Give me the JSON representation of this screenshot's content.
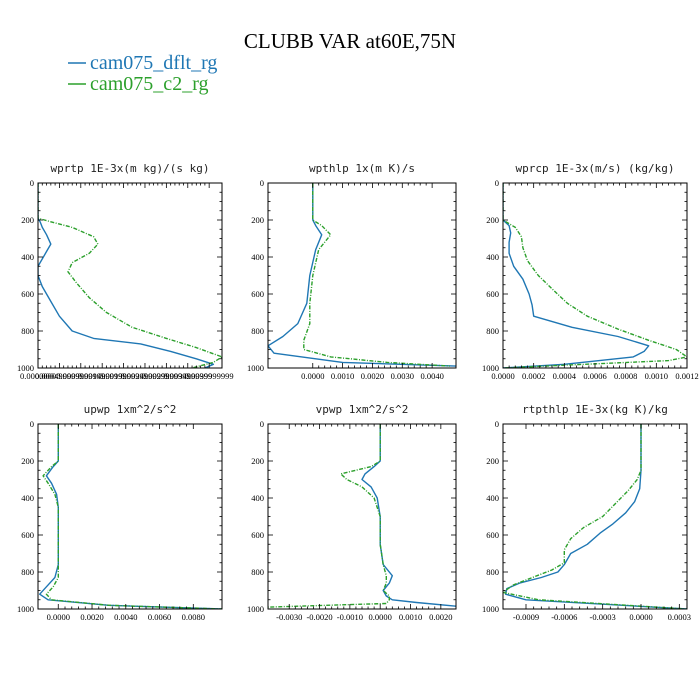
{
  "figure": {
    "title": "CLUBB VAR at60E,75N",
    "legend": [
      {
        "label": "cam075_dflt_rg",
        "color": "#1f77b4",
        "dash": "solid"
      },
      {
        "label": "cam075_c2_rg",
        "color": "#2ca02c",
        "dash": "dashed"
      }
    ]
  },
  "chart_data": [
    {
      "type": "line",
      "title": "wprtp  1E-3x(m kg)/(s kg)",
      "xlim": [
        0,
        0.0043
      ],
      "ylim": [
        1000,
        0
      ],
      "y_ticks": [
        0,
        200,
        400,
        600,
        800,
        1000
      ],
      "x_ticks": [
        {
          "v": 0.0,
          "label": "0.0000000"
        },
        {
          "v": 0.0005,
          "label": "0.0004999999"
        },
        {
          "v": 0.001,
          "label": "0.0009999999"
        },
        {
          "v": 0.0015,
          "label": "0.0014999999"
        },
        {
          "v": 0.002,
          "label": "0.0019999999"
        },
        {
          "v": 0.0025,
          "label": "0.0024999999"
        },
        {
          "v": 0.003,
          "label": "0.0029999999"
        },
        {
          "v": 0.0035,
          "label": "0.0034999999"
        },
        {
          "v": 0.004,
          "label": "0.0039999999"
        }
      ],
      "series": [
        {
          "name": "cam075_dflt_rg",
          "color": "#1f77b4",
          "dash": "solid",
          "x": [
            0,
            0,
            5e-05,
            0.0001,
            0.0002,
            0.0003,
            0.0002,
            0.0001,
            0,
            0,
            0.0001,
            0.0003,
            0.0005,
            0.0008,
            0.0013,
            0.0024,
            0.0031,
            0.0037,
            0.0041,
            0.0039
          ],
          "y": [
            0,
            190,
            210,
            240,
            280,
            330,
            370,
            410,
            450,
            500,
            560,
            640,
            720,
            800,
            840,
            870,
            910,
            950,
            980,
            1000
          ]
        },
        {
          "name": "cam075_c2_rg",
          "color": "#2ca02c",
          "dash": "dashed",
          "x": [
            0,
            0,
            0.0003,
            0.0008,
            0.0013,
            0.0014,
            0.0012,
            0.0008,
            0.0007,
            0.0009,
            0.0012,
            0.0016,
            0.0022,
            0.003,
            0.0037,
            0.0043,
            0.0041,
            0.0036
          ],
          "y": [
            0,
            190,
            210,
            240,
            290,
            330,
            380,
            430,
            480,
            540,
            620,
            700,
            780,
            840,
            890,
            940,
            970,
            1000
          ]
        }
      ]
    },
    {
      "type": "line",
      "title": "wpthlp  1x(m K)/s",
      "xlim": [
        -0.0015,
        0.0048
      ],
      "ylim": [
        1000,
        0
      ],
      "y_ticks": [
        0,
        200,
        400,
        600,
        800,
        1000
      ],
      "x_ticks": [
        {
          "v": 0.0,
          "label": "0.0000"
        },
        {
          "v": 0.001,
          "label": "0.0010"
        },
        {
          "v": 0.002,
          "label": "0.0020"
        },
        {
          "v": 0.003,
          "label": "0.0030"
        },
        {
          "v": 0.004,
          "label": "0.0040"
        }
      ],
      "series": [
        {
          "name": "cam075_dflt_rg",
          "color": "#1f77b4",
          "dash": "solid",
          "x": [
            0,
            0,
            0.0001,
            0.0003,
            0.0001,
            -0.0001,
            -0.0002,
            -0.0005,
            -0.001,
            -0.0015,
            -0.0013,
            0.001,
            0.0048
          ],
          "y": [
            0,
            200,
            230,
            280,
            360,
            500,
            650,
            760,
            830,
            880,
            920,
            970,
            990
          ]
        },
        {
          "name": "cam075_c2_rg",
          "color": "#2ca02c",
          "dash": "dashed",
          "x": [
            0,
            0,
            0.0003,
            0.0006,
            0.0002,
            0,
            -0.0001,
            -0.0001,
            -0.0003,
            -0.0003,
            0.0006,
            0.0025,
            0.0046
          ],
          "y": [
            0,
            200,
            230,
            280,
            360,
            500,
            650,
            760,
            850,
            900,
            940,
            970,
            990
          ]
        }
      ]
    },
    {
      "type": "line",
      "title": "wprcp  1E-3x(m/s) (kg/kg)",
      "xlim": [
        0,
        0.0012
      ],
      "ylim": [
        1000,
        0
      ],
      "y_ticks": [
        0,
        200,
        400,
        600,
        800,
        1000
      ],
      "x_ticks": [
        {
          "v": 0.0,
          "label": "0.0000"
        },
        {
          "v": 0.0002,
          "label": "0.0002"
        },
        {
          "v": 0.0004,
          "label": "0.0004"
        },
        {
          "v": 0.0006,
          "label": "0.0006"
        },
        {
          "v": 0.0008,
          "label": "0.0008"
        },
        {
          "v": 0.001,
          "label": "0.0010"
        },
        {
          "v": 0.0012,
          "label": "0.0012"
        }
      ],
      "series": [
        {
          "name": "cam075_dflt_rg",
          "color": "#1f77b4",
          "dash": "solid",
          "x": [
            0,
            0,
            4e-05,
            5e-05,
            4e-05,
            4e-05,
            7e-05,
            0.00013,
            0.00017,
            0.00019,
            0.0002,
            0.00045,
            0.00075,
            0.00095,
            0.00092,
            0.00085,
            0.0004,
            0
          ],
          "y": [
            0,
            200,
            230,
            270,
            320,
            380,
            450,
            520,
            600,
            660,
            720,
            780,
            830,
            880,
            910,
            940,
            980,
            1000
          ]
        },
        {
          "name": "cam075_c2_rg",
          "color": "#2ca02c",
          "dash": "dashed",
          "x": [
            0,
            0,
            8e-05,
            0.00012,
            0.00013,
            0.00016,
            0.00023,
            0.00033,
            0.00042,
            0.00055,
            0.00075,
            0.00095,
            0.00113,
            0.0012,
            0.00108,
            0.0004,
            0
          ],
          "y": [
            0,
            200,
            240,
            290,
            350,
            420,
            500,
            580,
            650,
            720,
            790,
            850,
            900,
            940,
            960,
            985,
            1000
          ]
        }
      ]
    },
    {
      "type": "line",
      "title": "upwp  1xm^2/s^2",
      "xlim": [
        -0.0012,
        0.0097
      ],
      "ylim": [
        1000,
        0
      ],
      "y_ticks": [
        0,
        200,
        400,
        600,
        800,
        1000
      ],
      "x_ticks": [
        {
          "v": 0.0,
          "label": "0.0000"
        },
        {
          "v": 0.002,
          "label": "0.0020"
        },
        {
          "v": 0.004,
          "label": "0.0040"
        },
        {
          "v": 0.006,
          "label": "0.0060"
        },
        {
          "v": 0.008,
          "label": "0.0080"
        }
      ],
      "series": [
        {
          "name": "cam075_dflt_rg",
          "color": "#1f77b4",
          "dash": "solid",
          "x": [
            0,
            0,
            -0.0003,
            -0.0007,
            -0.0004,
            -0.0001,
            0,
            0,
            0,
            -0.0002,
            -0.0007,
            -0.0011,
            -0.0006,
            0.003,
            0.0097
          ],
          "y": [
            0,
            200,
            230,
            280,
            320,
            380,
            450,
            600,
            760,
            830,
            880,
            920,
            950,
            980,
            1000
          ]
        },
        {
          "name": "cam075_c2_rg",
          "color": "#2ca02c",
          "dash": "dashed",
          "x": [
            0,
            0,
            -0.0004,
            -0.0009,
            -0.0006,
            -0.0002,
            0,
            0,
            0,
            0,
            -0.0003,
            -0.0007,
            -0.0004,
            0.003,
            0.0097
          ],
          "y": [
            0,
            200,
            230,
            280,
            320,
            380,
            450,
            600,
            760,
            830,
            880,
            920,
            950,
            980,
            1000
          ]
        }
      ]
    },
    {
      "type": "line",
      "title": "vpwp  1xm^2/s^2",
      "xlim": [
        -0.0037,
        0.0025
      ],
      "ylim": [
        1000,
        0
      ],
      "y_ticks": [
        0,
        200,
        400,
        600,
        800,
        1000
      ],
      "x_ticks": [
        {
          "v": -0.003,
          "label": "-0.0030"
        },
        {
          "v": -0.002,
          "label": "-0.0020"
        },
        {
          "v": -0.001,
          "label": "-0.0010"
        },
        {
          "v": 0.0,
          "label": "0.0000"
        },
        {
          "v": 0.001,
          "label": "0.0010"
        },
        {
          "v": 0.002,
          "label": "0.0020"
        }
      ],
      "series": [
        {
          "name": "cam075_dflt_rg",
          "color": "#1f77b4",
          "dash": "solid",
          "x": [
            0,
            0,
            -0.0002,
            -0.0005,
            -0.0006,
            -0.0003,
            -0.0001,
            0,
            0,
            0.0001,
            0.0004,
            0.0003,
            0.0001,
            0.0002,
            0.0004,
            0.0012,
            0.0025
          ],
          "y": [
            0,
            200,
            230,
            270,
            300,
            340,
            400,
            500,
            650,
            760,
            820,
            860,
            900,
            930,
            950,
            965,
            985
          ]
        },
        {
          "name": "cam075_c2_rg",
          "color": "#2ca02c",
          "dash": "dashed",
          "x": [
            0,
            0,
            -0.0003,
            -0.0013,
            -0.0011,
            -0.0006,
            -0.0002,
            0,
            0,
            0.0001,
            0.0002,
            0.0002,
            0.0001,
            0.0003,
            0.0003,
            0.0002,
            -0.0037
          ],
          "y": [
            0,
            200,
            230,
            270,
            300,
            340,
            400,
            500,
            650,
            760,
            820,
            860,
            900,
            930,
            950,
            970,
            990
          ]
        }
      ]
    },
    {
      "type": "line",
      "title": "rtpthlp  1E-3x(kg K)/kg",
      "xlim": [
        -0.00108,
        0.00036
      ],
      "ylim": [
        1000,
        0
      ],
      "y_ticks": [
        0,
        200,
        400,
        600,
        800,
        1000
      ],
      "x_ticks": [
        {
          "v": -0.0009,
          "label": "-0.0009"
        },
        {
          "v": -0.0006,
          "label": "-0.0006"
        },
        {
          "v": -0.0003,
          "label": "-0.0003"
        },
        {
          "v": 0.0,
          "label": "0.0000"
        },
        {
          "v": 0.0003,
          "label": "0.0003"
        }
      ],
      "series": [
        {
          "name": "cam075_dflt_rg",
          "color": "#1f77b4",
          "dash": "solid",
          "x": [
            0,
            0,
            -1e-05,
            -5e-05,
            -0.00012,
            -0.00022,
            -0.00032,
            -0.00042,
            -0.00055,
            -0.0006,
            -0.00065,
            -0.00078,
            -0.00095,
            -0.00105,
            -0.00106,
            -0.0009,
            0.00036
          ],
          "y": [
            0,
            250,
            350,
            420,
            480,
            540,
            590,
            650,
            700,
            760,
            800,
            830,
            860,
            890,
            920,
            950,
            1000
          ]
        },
        {
          "name": "cam075_c2_rg",
          "color": "#2ca02c",
          "dash": "dashed",
          "x": [
            0,
            0,
            -3e-05,
            -0.0001,
            -0.0002,
            -0.0003,
            -0.00045,
            -0.00055,
            -0.0006,
            -0.0006,
            -0.0007,
            -0.00085,
            -0.001,
            -0.00108,
            -0.0008,
            0.00036
          ],
          "y": [
            0,
            250,
            300,
            360,
            430,
            500,
            560,
            620,
            680,
            750,
            790,
            830,
            870,
            910,
            950,
            1000
          ]
        }
      ]
    }
  ]
}
